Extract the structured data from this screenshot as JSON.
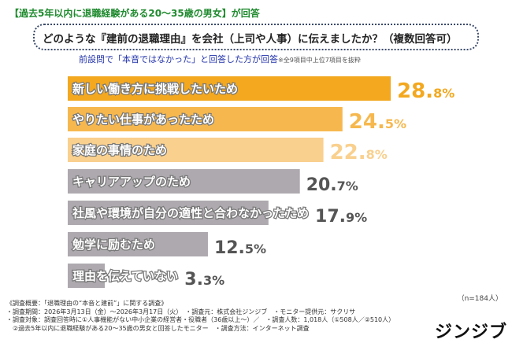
{
  "header": {
    "target_label": "【過去5年以内に退職経験がある20〜35歳の男女】が回答",
    "question": "どのような『建前の退職理由』を会社（上司や人事）に伝えましたか？（複数回答可）",
    "subtitle": "前設問で「本音ではなかった」と回答した方が回答",
    "note": "※全9項目中上位7項目を抜粋"
  },
  "chart_data": {
    "type": "bar",
    "orientation": "horizontal",
    "unit": "%",
    "categories": [
      "新しい働き方に挑戦したいため",
      "やりたい仕事があったため",
      "家庭の事情のため",
      "キャリアアップのため",
      "社風や環境が自分の適性と合わなかったため",
      "勉学に励むため",
      "理由を伝えていない"
    ],
    "values": [
      28.8,
      24.5,
      22.8,
      20.7,
      17.9,
      12.5,
      3.3
    ],
    "value_labels": [
      [
        "28.",
        "8%"
      ],
      [
        "24.",
        "5%"
      ],
      [
        "22.",
        "8%"
      ],
      [
        "20.",
        "7%"
      ],
      [
        "17.",
        "9%"
      ],
      [
        "12.",
        "5%"
      ],
      [
        "3.",
        "3%"
      ]
    ],
    "colors": [
      "#F3A81F",
      "#F6B84E",
      "#F9D08E",
      "#ADA9AE",
      "#ADA9AE",
      "#ADA9AE",
      "#ADA9AE"
    ],
    "value_colors": [
      "#F3A81F",
      "#F6B84E",
      "#F9D08E",
      "#555555",
      "#555555",
      "#555555",
      "#555555"
    ],
    "xlim": [
      0,
      30
    ],
    "grid": false
  },
  "sample_size": "（n=184人）",
  "footer": {
    "lines": [
      "《調査概要：「退職理由の“本音と建前”」に関する調査》",
      "・調査期間：2026年3月13日（金）〜2026年3月17日（火）　・調査元：株式会社ジンジブ　・モニター提供元：サクリサ",
      "・調査対象：調査回答時に①人事機能がない中小企業の経営者・役職者（36歳以上〜）／　・調査人数：1,018人（①508人／②510人）",
      "　②過去5年以内に退職経験がある20〜35歳の男女と回答したモニター　・調査方法：インターネット調査"
    ]
  },
  "logo": "ジンジブ"
}
